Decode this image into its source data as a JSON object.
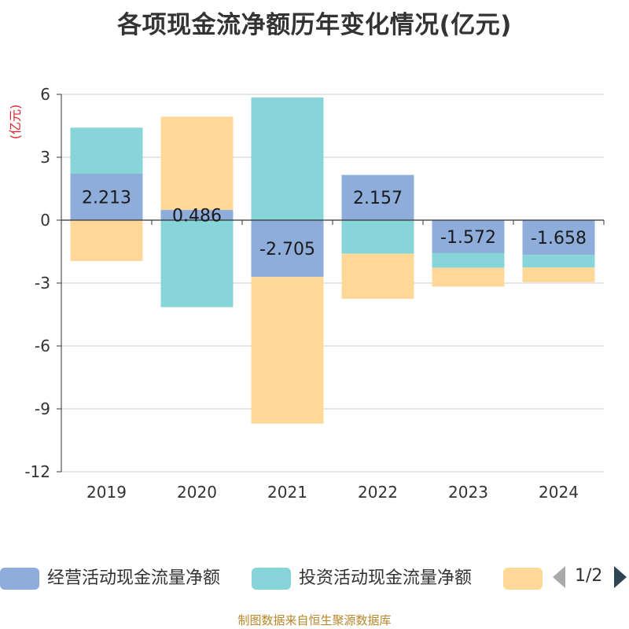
{
  "chart_data": {
    "type": "bar",
    "stacked": true,
    "title": "各项现金流净额历年变化情况(亿元)",
    "ylabel": "(亿元)",
    "xlabel": "",
    "categories": [
      "2019",
      "2020",
      "2021",
      "2022",
      "2023",
      "2024"
    ],
    "ylim": [
      -12,
      6
    ],
    "yticks": [
      6,
      3,
      0,
      -3,
      -6,
      -9,
      -12
    ],
    "grid": true,
    "series": [
      {
        "name": "经营活动现金流量净额",
        "color": "#8eaddb",
        "values": [
          2.213,
          0.486,
          -2.705,
          2.157,
          -1.572,
          -1.658
        ],
        "data_labels": [
          "2.213",
          "0.486",
          "-2.705",
          "2.157",
          "-1.572",
          "-1.658"
        ]
      },
      {
        "name": "投资活动现金流量净额",
        "color": "#88d5d9",
        "values": [
          2.2,
          -4.15,
          5.85,
          -1.6,
          -0.7,
          -0.6
        ]
      },
      {
        "name": "",
        "color": "#fed899",
        "values": [
          -1.95,
          4.45,
          -7.0,
          -2.15,
          -0.9,
          -0.7
        ]
      }
    ],
    "legend_position": "bottom"
  },
  "legend": {
    "pager": "1/2"
  },
  "source": "制图数据来自恒生聚源数据库"
}
